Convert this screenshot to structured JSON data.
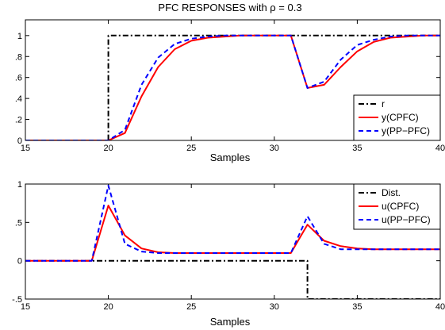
{
  "chart_data": [
    {
      "type": "line",
      "title": "PFC RESPONSES with ρ = 0.3",
      "xlabel": "Samples",
      "ylabel": "",
      "xlim": [
        15,
        40
      ],
      "ylim": [
        0,
        1.15
      ],
      "grid": false,
      "legend_position": "bottom-right",
      "xticks": [
        15,
        20,
        25,
        30,
        35,
        40
      ],
      "xtick_labels": [
        "15",
        "20",
        "25",
        "30",
        "35",
        "40"
      ],
      "yticks": [
        0,
        0.2,
        0.4,
        0.6,
        0.8,
        1
      ],
      "ytick_labels": [
        "0",
        ".2",
        ".4",
        ".6",
        ".8",
        "1"
      ],
      "series": [
        {
          "name": "r",
          "color": "#000000",
          "dash": "dashdot",
          "x": [
            15,
            20,
            20,
            40
          ],
          "y": [
            0,
            0,
            1,
            1
          ]
        },
        {
          "name": "y(CPFC)",
          "color": "#ff0000",
          "dash": "solid",
          "x": [
            15,
            16,
            17,
            18,
            19,
            20,
            21,
            22,
            23,
            24,
            25,
            26,
            27,
            28,
            29,
            30,
            31,
            32,
            33,
            34,
            35,
            36,
            37,
            38,
            39,
            40
          ],
          "y": [
            0,
            0,
            0,
            0,
            0,
            0,
            0.07,
            0.42,
            0.7,
            0.87,
            0.95,
            0.98,
            0.99,
            1.0,
            1.0,
            1.0,
            1.0,
            0.5,
            0.53,
            0.7,
            0.85,
            0.94,
            0.98,
            0.99,
            1.0,
            1.0
          ]
        },
        {
          "name": "y(PP−PFC)",
          "color": "#0000ff",
          "dash": "dashed",
          "x": [
            15,
            16,
            17,
            18,
            19,
            20,
            21,
            22,
            23,
            24,
            25,
            26,
            27,
            28,
            29,
            30,
            31,
            32,
            33,
            34,
            35,
            36,
            37,
            38,
            39,
            40
          ],
          "y": [
            0,
            0,
            0,
            0,
            0,
            0,
            0.1,
            0.53,
            0.79,
            0.92,
            0.97,
            0.99,
            1.0,
            1.0,
            1.0,
            1.0,
            1.0,
            0.5,
            0.56,
            0.77,
            0.91,
            0.96,
            0.99,
            1.0,
            1.0,
            1.0
          ]
        }
      ]
    },
    {
      "type": "line",
      "title": "",
      "xlabel": "Samples",
      "ylabel": "",
      "xlim": [
        15,
        40
      ],
      "ylim": [
        -0.5,
        1
      ],
      "grid": false,
      "legend_position": "top-right",
      "xticks": [
        15,
        20,
        25,
        30,
        35,
        40
      ],
      "xtick_labels": [
        "15",
        "20",
        "25",
        "30",
        "35",
        "40"
      ],
      "yticks": [
        -0.5,
        0,
        0.5,
        1
      ],
      "ytick_labels": [
        "-.5",
        "0",
        ".5",
        "1"
      ],
      "series": [
        {
          "name": "Dist.",
          "color": "#000000",
          "dash": "dashdot",
          "x": [
            15,
            32,
            32,
            40
          ],
          "y": [
            0,
            0,
            -0.5,
            -0.5
          ]
        },
        {
          "name": "u(CPFC)",
          "color": "#ff0000",
          "dash": "solid",
          "x": [
            15,
            16,
            17,
            18,
            19,
            20,
            21,
            22,
            23,
            24,
            25,
            26,
            27,
            28,
            29,
            30,
            31,
            32,
            33,
            34,
            35,
            36,
            37,
            38,
            39,
            40
          ],
          "y": [
            0,
            0,
            0,
            0,
            0,
            0.72,
            0.33,
            0.16,
            0.11,
            0.1,
            0.1,
            0.1,
            0.1,
            0.1,
            0.1,
            0.1,
            0.1,
            0.47,
            0.26,
            0.19,
            0.16,
            0.15,
            0.15,
            0.15,
            0.15,
            0.15
          ]
        },
        {
          "name": "u(PP−PFC)",
          "color": "#0000ff",
          "dash": "dashed",
          "x": [
            15,
            16,
            17,
            18,
            19,
            20,
            21,
            22,
            23,
            24,
            25,
            26,
            27,
            28,
            29,
            30,
            31,
            32,
            33,
            34,
            35,
            36,
            37,
            38,
            39,
            40
          ],
          "y": [
            0,
            0,
            0,
            0,
            0,
            0.98,
            0.22,
            0.12,
            0.1,
            0.1,
            0.1,
            0.1,
            0.1,
            0.1,
            0.1,
            0.1,
            0.1,
            0.58,
            0.22,
            0.15,
            0.15,
            0.15,
            0.15,
            0.15,
            0.15,
            0.15
          ]
        }
      ]
    }
  ]
}
